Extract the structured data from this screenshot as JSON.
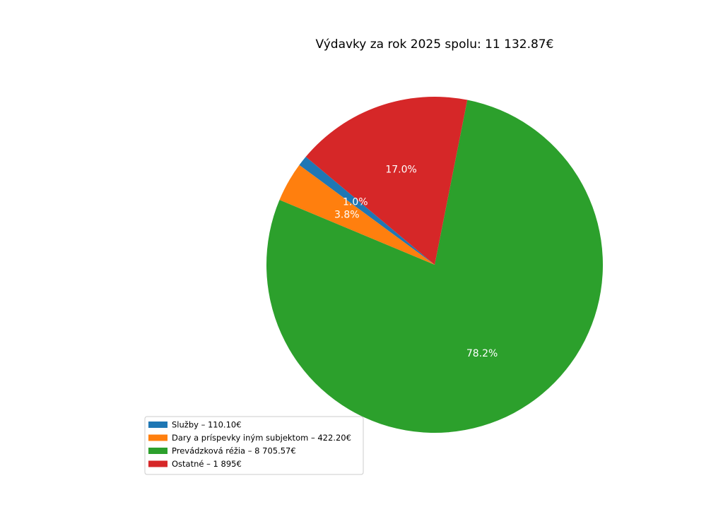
{
  "chart_data": {
    "type": "pie",
    "title": "Výdavky za rok 2025 spolu: 11 132.87€",
    "categories": [
      "Služby – 110.10€",
      "Dary a príspevky iným subjektom – 422.20€",
      "Prevádzková réžia – 8 705.57€",
      "Ostatné – 1 895€"
    ],
    "values": [
      1.0,
      3.8,
      78.2,
      17.0
    ],
    "value_labels": [
      "1.0%",
      "3.8%",
      "78.2%",
      "17.0%"
    ],
    "colors": [
      "#1f77b4",
      "#ff7f0e",
      "#2ca02c",
      "#d62728"
    ],
    "legend": "lower left"
  }
}
